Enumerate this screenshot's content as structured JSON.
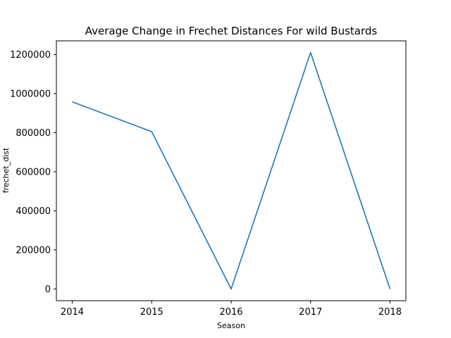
{
  "chart_data": {
    "type": "line",
    "title": "Average Change in Frechet Distances For wild Bustards",
    "xlabel": "Season",
    "ylabel": "frechet_dist",
    "x": [
      2014,
      2015,
      2016,
      2017,
      2018
    ],
    "x_ticks": [
      "2014",
      "2015",
      "2016",
      "2017",
      "2018"
    ],
    "y_ticks": [
      0,
      200000,
      400000,
      600000,
      800000,
      1000000,
      1200000
    ],
    "y_tick_labels": [
      "0",
      "200000",
      "400000",
      "600000",
      "800000",
      "1000000",
      "1200000"
    ],
    "xlim": [
      2013.8,
      2018.2
    ],
    "ylim": [
      -60000,
      1270000
    ],
    "grid": false,
    "series": [
      {
        "values": [
          958000,
          805000,
          0,
          1210000,
          0
        ],
        "color": "#1f77b4"
      }
    ]
  }
}
